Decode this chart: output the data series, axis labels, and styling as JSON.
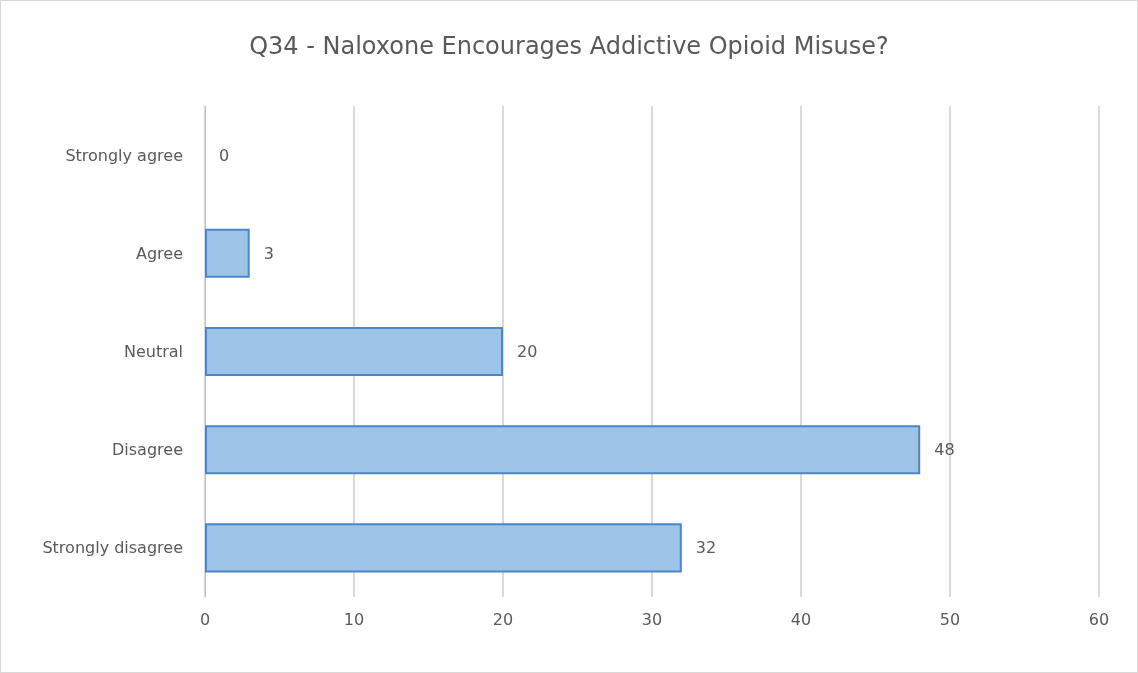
{
  "chart_data": {
    "type": "bar",
    "orientation": "horizontal",
    "title": "Q34 - Naloxone Encourages Addictive Opioid Misuse?",
    "categories": [
      "Strongly agree",
      "Agree",
      "Neutral",
      "Disagree",
      "Strongly disagree"
    ],
    "values": [
      0,
      3,
      20,
      48,
      32
    ],
    "color": "#9dc3e6",
    "xlim": [
      0,
      60
    ],
    "xticks": [
      0,
      10,
      20,
      30,
      40,
      50,
      60
    ],
    "grid": "x",
    "data_labels": true
  }
}
